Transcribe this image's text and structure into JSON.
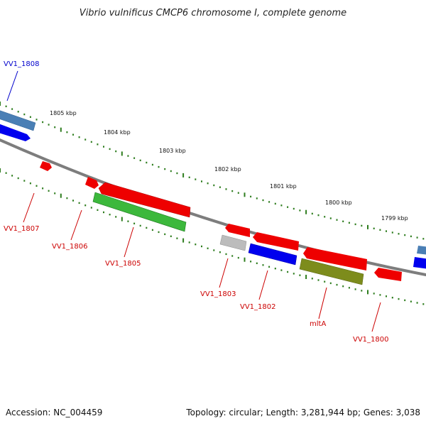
{
  "title": "Vibrio vulnificus CMCP6 chromosome I, complete genome",
  "footer": {
    "accession": "Accession: NC_004459",
    "topology": "Topology: circular; Length: 3,281,944 bp; Genes: 3,038"
  },
  "colors": {
    "backbone": "#808080",
    "forward_tick": "#2e7d1e",
    "red": "#ff0000",
    "blue": "#0000ff",
    "steelblue": "#4a7fb5",
    "green": "#2faa2f",
    "olive": "#7a8c1c",
    "gray": "#bbbbbb",
    "label_red": "#cc0000",
    "label_blue": "#0000cc"
  },
  "kbp_labels": [
    "1805 kbp",
    "1804 kbp",
    "1803 kbp",
    "1802 kbp",
    "1801 kbp",
    "1800 kbp",
    "1799 kbp"
  ],
  "gene_labels": [
    {
      "text": "VV1_1808",
      "color": "blue"
    },
    {
      "text": "VV1_1807",
      "color": "red"
    },
    {
      "text": "VV1_1806",
      "color": "red"
    },
    {
      "text": "VV1_1805",
      "color": "red"
    },
    {
      "text": "VV1_1803",
      "color": "red"
    },
    {
      "text": "VV1_1802",
      "color": "red"
    },
    {
      "text": "mltA",
      "color": "red"
    },
    {
      "text": "VV1_1800",
      "color": "red"
    }
  ]
}
